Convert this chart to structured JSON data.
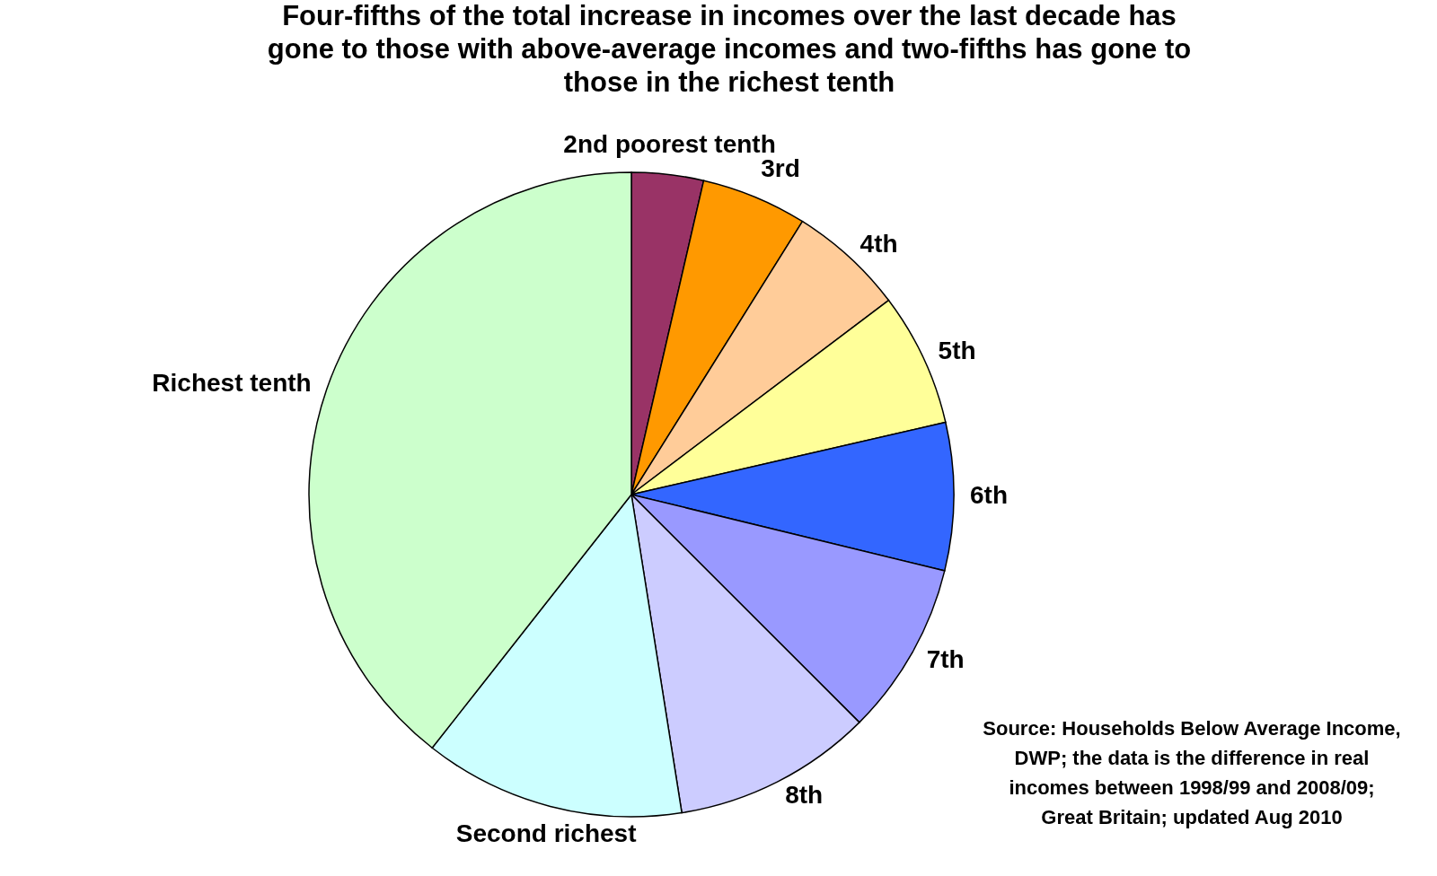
{
  "chart_data": {
    "type": "pie",
    "title": "Four-fifths of the total increase in incomes over the last decade has gone to those with above-average incomes and two-fifths has gone to those in the richest tenth",
    "categories": [
      "2nd poorest tenth",
      "3rd",
      "4th",
      "5th",
      "6th",
      "7th",
      "8th",
      "Second richest",
      "Richest tenth"
    ],
    "values": [
      3.6,
      5.3,
      5.8,
      6.7,
      7.4,
      8.7,
      10.0,
      13.1,
      39.4
    ],
    "colors": [
      "#993366",
      "#ff9900",
      "#ffcc99",
      "#ffff99",
      "#3366ff",
      "#9999ff",
      "#ccccff",
      "#ccffff",
      "#ccffcc"
    ],
    "annotations": [
      "Source: Households Below Average Income, DWP; the data is the difference in real incomes between 1998/99 and 2008/09; Great Britain; updated Aug 2010"
    ]
  }
}
